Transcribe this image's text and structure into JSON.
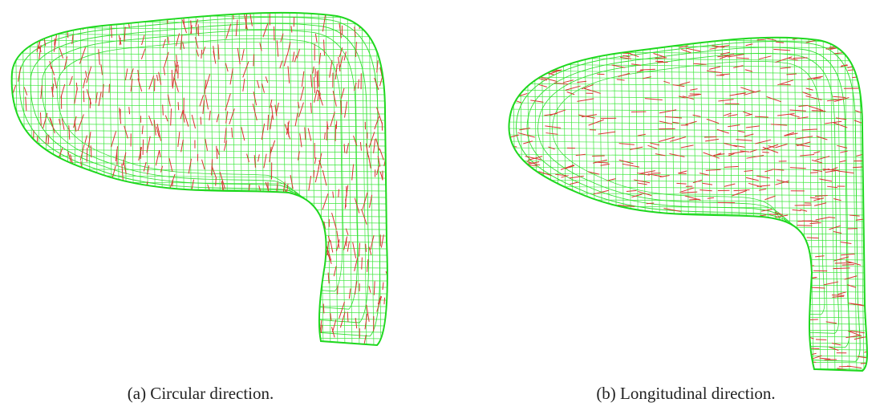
{
  "figures": [
    {
      "caption": "(a) Circular direction."
    },
    {
      "caption": "(b) Longitudinal direction."
    }
  ]
}
